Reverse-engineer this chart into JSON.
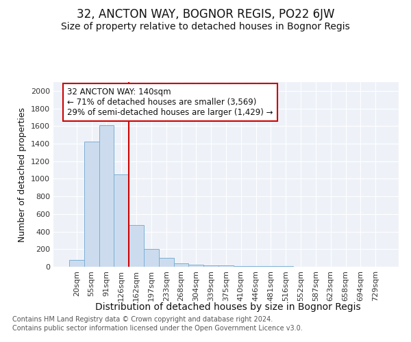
{
  "title": "32, ANCTON WAY, BOGNOR REGIS, PO22 6JW",
  "subtitle": "Size of property relative to detached houses in Bognor Regis",
  "xlabel": "Distribution of detached houses by size in Bognor Regis",
  "ylabel": "Number of detached properties",
  "categories": [
    "20sqm",
    "55sqm",
    "91sqm",
    "126sqm",
    "162sqm",
    "197sqm",
    "233sqm",
    "268sqm",
    "304sqm",
    "339sqm",
    "375sqm",
    "410sqm",
    "446sqm",
    "481sqm",
    "516sqm",
    "552sqm",
    "587sqm",
    "623sqm",
    "658sqm",
    "694sqm",
    "729sqm"
  ],
  "values": [
    80,
    1420,
    1610,
    1050,
    475,
    200,
    105,
    40,
    25,
    18,
    14,
    10,
    8,
    6,
    4,
    3,
    2,
    2,
    1,
    1,
    0
  ],
  "bar_color": "#ccdcee",
  "bar_edge_color": "#7aafd4",
  "vline_x": 3.5,
  "vline_color": "#cc0000",
  "annotation_text": "32 ANCTON WAY: 140sqm\n← 71% of detached houses are smaller (3,569)\n29% of semi-detached houses are larger (1,429) →",
  "annotation_box_color": "#ffffff",
  "annotation_box_edge": "#cc0000",
  "ylim": [
    0,
    2100
  ],
  "yticks": [
    0,
    200,
    400,
    600,
    800,
    1000,
    1200,
    1400,
    1600,
    1800,
    2000
  ],
  "footer_line1": "Contains HM Land Registry data © Crown copyright and database right 2024.",
  "footer_line2": "Contains public sector information licensed under the Open Government Licence v3.0.",
  "bg_color": "#eef2f8",
  "fig_bg_color": "#ffffff",
  "title_fontsize": 12,
  "subtitle_fontsize": 10,
  "xlabel_fontsize": 10,
  "ylabel_fontsize": 9,
  "annotation_fontsize": 8.5,
  "footer_fontsize": 7,
  "tick_fontsize": 8
}
